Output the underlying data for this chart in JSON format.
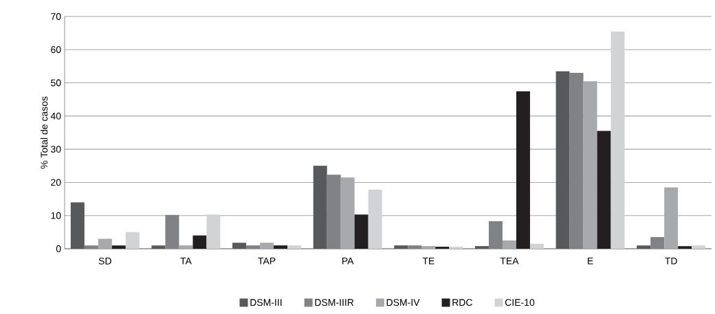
{
  "chart_data": {
    "type": "bar",
    "ylabel": "% Total de casos",
    "categories": [
      "SD",
      "TA",
      "TAP",
      "PA",
      "TE",
      "TEA",
      "E",
      "TD"
    ],
    "series": [
      {
        "name": "DSM-III",
        "color": "#58595b",
        "values": [
          14,
          1,
          1.8,
          25,
          1,
          0.8,
          53.5,
          1
        ]
      },
      {
        "name": "DSM-IIIR",
        "color": "#808285",
        "values": [
          1,
          10.2,
          1,
          22.3,
          1,
          8.3,
          53,
          3.5
        ]
      },
      {
        "name": "DSM-IV",
        "color": "#a7a9ac",
        "values": [
          3,
          1,
          1.8,
          21.5,
          0.8,
          2.5,
          50.5,
          18.5
        ]
      },
      {
        "name": "RDC",
        "color": "#231f20",
        "values": [
          1,
          4,
          1,
          10.3,
          0.6,
          47.5,
          35.5,
          0.8
        ]
      },
      {
        "name": "CIE-10",
        "color": "#d1d3d4",
        "values": [
          5,
          10.3,
          1,
          17.8,
          0.6,
          1.5,
          65.5,
          1
        ]
      }
    ],
    "ylim": [
      0,
      70
    ],
    "yticks": [
      0,
      10,
      20,
      30,
      40,
      50,
      60,
      70
    ],
    "grid": "y",
    "legend": "bottom"
  }
}
